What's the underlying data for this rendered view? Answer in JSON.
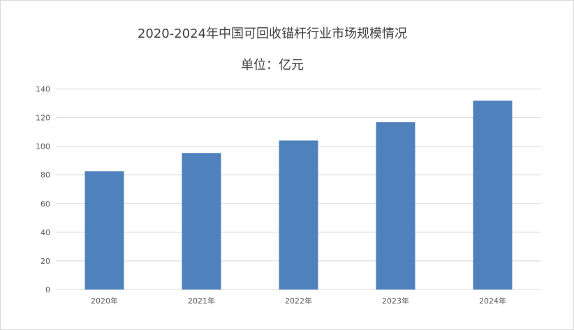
{
  "chart_data": {
    "type": "bar",
    "title": "2020-2024年中国可回收锚杆行业市场规模情况",
    "subtitle": "单位：亿元",
    "categories": [
      "2020年",
      "2021年",
      "2022年",
      "2023年",
      "2024年"
    ],
    "values": [
      82.6,
      95.3,
      104.0,
      116.8,
      131.8
    ],
    "xlabel": "",
    "ylabel": "",
    "ylim": [
      0,
      140
    ],
    "yticks": [
      0,
      20,
      40,
      60,
      80,
      100,
      120,
      140
    ],
    "grid": true,
    "legend": "none",
    "colors": {
      "bar": "#4f81bd",
      "grid": "#d9d9d9",
      "text": "#595959"
    }
  }
}
